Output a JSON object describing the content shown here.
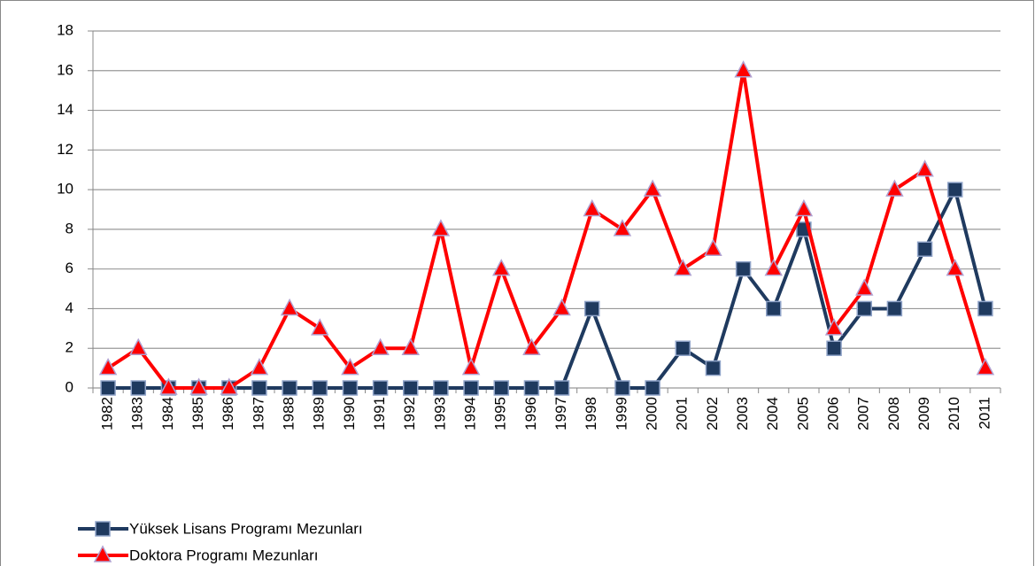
{
  "chart_data": {
    "type": "line",
    "categories": [
      "1982",
      "1983",
      "1984",
      "1985",
      "1986",
      "1987",
      "1988",
      "1989",
      "1990",
      "1991",
      "1992",
      "1993",
      "1994",
      "1995",
      "1996",
      "1997",
      "1998",
      "1999",
      "2000",
      "2001",
      "2002",
      "2003",
      "2004",
      "2005",
      "2006",
      "2007",
      "2008",
      "2009",
      "2010",
      "2011"
    ],
    "series": [
      {
        "name": "Yüksek Lisans Programı Mezunları",
        "color": "#1f3a5f",
        "marker": "square",
        "values": [
          0,
          0,
          0,
          0,
          0,
          0,
          0,
          0,
          0,
          0,
          0,
          0,
          0,
          0,
          0,
          0,
          4,
          0,
          0,
          2,
          1,
          6,
          4,
          8,
          2,
          4,
          4,
          7,
          10,
          4
        ]
      },
      {
        "name": "Doktora Programı Mezunları",
        "color": "#ff0000",
        "marker": "triangle",
        "values": [
          1,
          2,
          0,
          0,
          0,
          1,
          4,
          3,
          1,
          2,
          2,
          8,
          1,
          6,
          2,
          4,
          9,
          8,
          10,
          6,
          7,
          16,
          6,
          9,
          3,
          5,
          10,
          11,
          6,
          1
        ]
      }
    ],
    "ylim": [
      0,
      18
    ],
    "yticks": [
      0,
      2,
      4,
      6,
      8,
      10,
      12,
      14,
      16,
      18
    ],
    "grid": true,
    "legend": "bottom-left"
  }
}
